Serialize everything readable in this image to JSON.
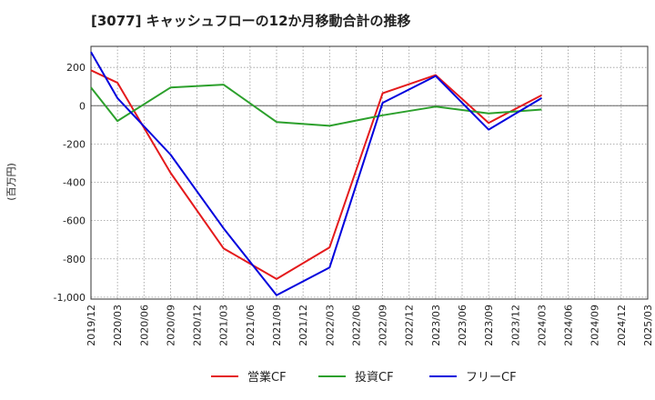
{
  "chart_data": {
    "type": "line",
    "title": "[3077]  キャッシュフローの12か月移動合計の推移",
    "ylabel": "(百万円)",
    "xlabel": "",
    "ylim": [
      -1010,
      310
    ],
    "yticks": [
      200,
      0,
      -200,
      -400,
      -600,
      -800,
      -1000
    ],
    "ytick_labels": [
      "200",
      "0",
      "-200",
      "-400",
      "-600",
      "-800",
      "-1,000"
    ],
    "xticks": [
      "2019/12",
      "2020/03",
      "2020/06",
      "2020/09",
      "2020/12",
      "2021/03",
      "2021/06",
      "2021/09",
      "2021/12",
      "2022/03",
      "2022/06",
      "2022/09",
      "2022/12",
      "2023/03",
      "2023/06",
      "2023/09",
      "2023/12",
      "2024/03",
      "2024/06",
      "2024/09",
      "2024/12",
      "2025/03"
    ],
    "grid": true,
    "legend_position": "bottom",
    "series": [
      {
        "name": "営業CF",
        "color": "#e41a1c",
        "x": [
          "2019/12",
          "2020/03",
          "2020/09",
          "2021/03",
          "2021/09",
          "2022/03",
          "2022/09",
          "2023/03",
          "2023/09",
          "2024/03"
        ],
        "values": [
          185,
          120,
          -350,
          -745,
          -905,
          -740,
          65,
          160,
          -90,
          55
        ]
      },
      {
        "name": "投資CF",
        "color": "#2ca02c",
        "x": [
          "2019/12",
          "2020/03",
          "2020/09",
          "2021/03",
          "2021/09",
          "2022/03",
          "2022/09",
          "2023/03",
          "2023/09",
          "2024/03"
        ],
        "values": [
          95,
          -80,
          95,
          110,
          -85,
          -105,
          -50,
          -5,
          -40,
          -20
        ]
      },
      {
        "name": "フリーCF",
        "color": "#0000dd",
        "x": [
          "2019/12",
          "2020/03",
          "2020/09",
          "2021/03",
          "2021/09",
          "2022/03",
          "2022/09",
          "2023/03",
          "2023/09",
          "2024/03"
        ],
        "values": [
          280,
          40,
          -255,
          -640,
          -990,
          -845,
          15,
          155,
          -125,
          40
        ]
      }
    ]
  }
}
